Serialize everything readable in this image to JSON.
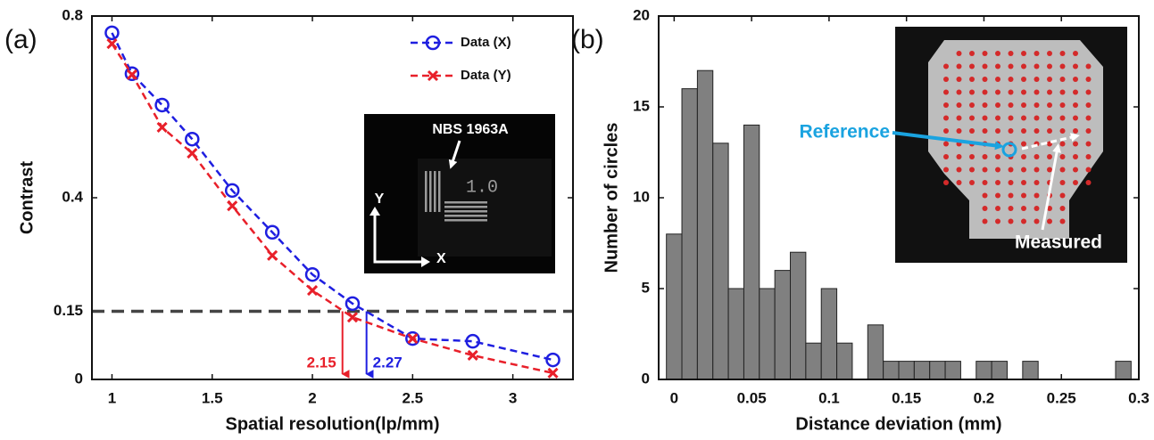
{
  "chart_data": [
    {
      "type": "line",
      "panel_label": "(a)",
      "xlabel": "Spatial resolution(lp/mm)",
      "ylabel": "Contrast",
      "xlim": [
        0.9,
        3.3
      ],
      "ylim": [
        0,
        0.8
      ],
      "xticks": [
        1,
        1.5,
        2,
        2.5,
        3
      ],
      "yticks": [
        0,
        0.15,
        0.4,
        0.8
      ],
      "series": [
        {
          "name": "Data (X)",
          "color": "#1f1fe0",
          "marker": "circle",
          "x": [
            1,
            1.1,
            1.25,
            1.4,
            1.6,
            1.8,
            2,
            2.2,
            2.5,
            2.8,
            3.2
          ],
          "values": [
            0.763,
            0.673,
            0.604,
            0.529,
            0.416,
            0.324,
            0.231,
            0.167,
            0.09,
            0.084,
            0.043
          ]
        },
        {
          "name": "Data (Y)",
          "color": "#e8202a",
          "marker": "x",
          "x": [
            1,
            1.1,
            1.25,
            1.4,
            1.6,
            1.8,
            2,
            2.2,
            2.5,
            2.8,
            3.2
          ],
          "values": [
            0.739,
            0.671,
            0.555,
            0.498,
            0.382,
            0.273,
            0.196,
            0.137,
            0.09,
            0.053,
            0.014
          ]
        }
      ],
      "threshold": 0.15,
      "annotations": [
        {
          "x": 2.15,
          "color": "#e8202a"
        },
        {
          "x": 2.27,
          "color": "#1f1fe0"
        }
      ],
      "inset_labels": [
        "NBS 1963A",
        "1.0",
        "Y",
        "X"
      ]
    },
    {
      "type": "histogram",
      "panel_label": "(b)",
      "xlabel": "Distance deviation (mm)",
      "ylabel": "Number of circles",
      "xlim": [
        -0.01,
        0.3
      ],
      "ylim": [
        0,
        20
      ],
      "xticks": [
        0,
        0.05,
        0.1,
        0.15,
        0.2,
        0.25,
        0.3
      ],
      "yticks": [
        0,
        5,
        10,
        15,
        20
      ],
      "color": "#808080",
      "bins": [
        -0.005,
        0.005,
        0.015,
        0.025,
        0.035,
        0.045,
        0.055,
        0.065,
        0.075,
        0.085,
        0.095,
        0.105,
        0.115,
        0.125,
        0.135,
        0.145,
        0.155,
        0.165,
        0.175,
        0.185,
        0.195,
        0.205,
        0.215,
        0.225,
        0.235,
        0.245,
        0.255,
        0.265,
        0.275,
        0.285,
        0.295
      ],
      "counts": [
        8,
        16,
        17,
        13,
        5,
        14,
        5,
        6,
        7,
        2,
        5,
        2,
        0,
        3,
        1,
        1,
        1,
        1,
        1,
        0,
        1,
        1,
        0,
        1,
        0,
        0,
        0,
        0,
        0,
        1
      ],
      "inset_labels": [
        "Reference",
        "Measured"
      ]
    }
  ]
}
